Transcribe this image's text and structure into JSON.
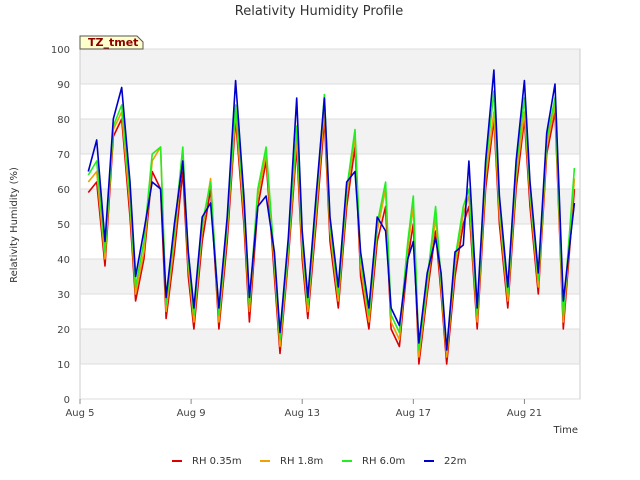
{
  "chart_data": {
    "type": "line",
    "title": "Relativity Humidity Profile",
    "badge": "TZ_tmet",
    "xlabel": "Time",
    "ylabel": "Relativity Humidity (%)",
    "xlim": [
      5,
      23
    ],
    "ylim": [
      0,
      100
    ],
    "yticks": [
      0,
      10,
      20,
      30,
      40,
      50,
      60,
      70,
      80,
      90,
      100
    ],
    "xticks": [
      {
        "day": 5,
        "label": "Aug 5"
      },
      {
        "day": 9,
        "label": "Aug 9"
      },
      {
        "day": 13,
        "label": "Aug 13"
      },
      {
        "day": 17,
        "label": "Aug 17"
      },
      {
        "day": 21,
        "label": "Aug 21"
      }
    ],
    "grid": true,
    "legend_position": "bottom",
    "x_unit": "day of August",
    "series": [
      {
        "name": "RH 0.35m",
        "color": "#dd0000",
        "points": [
          [
            5.3,
            59
          ],
          [
            5.6,
            62
          ],
          [
            5.9,
            38
          ],
          [
            6.2,
            75
          ],
          [
            6.5,
            80
          ],
          [
            6.8,
            52
          ],
          [
            7.0,
            28
          ],
          [
            7.3,
            40
          ],
          [
            7.6,
            65
          ],
          [
            7.9,
            60
          ],
          [
            8.1,
            23
          ],
          [
            8.4,
            42
          ],
          [
            8.7,
            65
          ],
          [
            8.9,
            35
          ],
          [
            9.1,
            20
          ],
          [
            9.4,
            45
          ],
          [
            9.7,
            60
          ],
          [
            10.0,
            20
          ],
          [
            10.3,
            45
          ],
          [
            10.6,
            80
          ],
          [
            10.9,
            50
          ],
          [
            11.1,
            22
          ],
          [
            11.4,
            55
          ],
          [
            11.7,
            68
          ],
          [
            12.0,
            35
          ],
          [
            12.2,
            13
          ],
          [
            12.5,
            40
          ],
          [
            12.8,
            72
          ],
          [
            13.0,
            40
          ],
          [
            13.2,
            23
          ],
          [
            13.5,
            50
          ],
          [
            13.8,
            80
          ],
          [
            14.0,
            45
          ],
          [
            14.3,
            26
          ],
          [
            14.6,
            55
          ],
          [
            14.9,
            72
          ],
          [
            15.1,
            35
          ],
          [
            15.4,
            20
          ],
          [
            15.7,
            45
          ],
          [
            16.0,
            55
          ],
          [
            16.2,
            20
          ],
          [
            16.5,
            15
          ],
          [
            16.8,
            40
          ],
          [
            17.0,
            50
          ],
          [
            17.2,
            10
          ],
          [
            17.5,
            30
          ],
          [
            17.8,
            48
          ],
          [
            18.0,
            30
          ],
          [
            18.2,
            10
          ],
          [
            18.5,
            35
          ],
          [
            18.8,
            50
          ],
          [
            19.0,
            55
          ],
          [
            19.3,
            20
          ],
          [
            19.6,
            60
          ],
          [
            19.9,
            80
          ],
          [
            20.1,
            50
          ],
          [
            20.4,
            26
          ],
          [
            20.7,
            60
          ],
          [
            21.0,
            80
          ],
          [
            21.2,
            55
          ],
          [
            21.5,
            30
          ],
          [
            21.8,
            70
          ],
          [
            22.1,
            82
          ],
          [
            22.4,
            20
          ],
          [
            22.8,
            60
          ]
        ]
      },
      {
        "name": "RH 1.8m",
        "color": "#f0a000",
        "points": [
          [
            5.3,
            62
          ],
          [
            5.6,
            65
          ],
          [
            5.9,
            40
          ],
          [
            6.2,
            77
          ],
          [
            6.5,
            82
          ],
          [
            6.8,
            55
          ],
          [
            7.0,
            30
          ],
          [
            7.3,
            42
          ],
          [
            7.6,
            68
          ],
          [
            7.9,
            72
          ],
          [
            8.1,
            25
          ],
          [
            8.4,
            45
          ],
          [
            8.7,
            70
          ],
          [
            8.9,
            38
          ],
          [
            9.1,
            22
          ],
          [
            9.4,
            48
          ],
          [
            9.7,
            63
          ],
          [
            10.0,
            22
          ],
          [
            10.3,
            48
          ],
          [
            10.6,
            82
          ],
          [
            10.9,
            53
          ],
          [
            11.1,
            25
          ],
          [
            11.4,
            58
          ],
          [
            11.7,
            70
          ],
          [
            12.0,
            38
          ],
          [
            12.2,
            15
          ],
          [
            12.5,
            42
          ],
          [
            12.8,
            75
          ],
          [
            13.0,
            43
          ],
          [
            13.2,
            25
          ],
          [
            13.5,
            53
          ],
          [
            13.8,
            83
          ],
          [
            14.0,
            48
          ],
          [
            14.3,
            28
          ],
          [
            14.6,
            58
          ],
          [
            14.9,
            75
          ],
          [
            15.1,
            38
          ],
          [
            15.4,
            22
          ],
          [
            15.7,
            48
          ],
          [
            16.0,
            60
          ],
          [
            16.2,
            22
          ],
          [
            16.5,
            17
          ],
          [
            16.8,
            43
          ],
          [
            17.0,
            55
          ],
          [
            17.2,
            12
          ],
          [
            17.5,
            32
          ],
          [
            17.8,
            52
          ],
          [
            18.0,
            32
          ],
          [
            18.2,
            12
          ],
          [
            18.5,
            38
          ],
          [
            18.8,
            53
          ],
          [
            19.0,
            58
          ],
          [
            19.3,
            22
          ],
          [
            19.6,
            63
          ],
          [
            19.9,
            82
          ],
          [
            20.1,
            53
          ],
          [
            20.4,
            28
          ],
          [
            20.7,
            63
          ],
          [
            21.0,
            82
          ],
          [
            21.2,
            58
          ],
          [
            21.5,
            32
          ],
          [
            21.8,
            72
          ],
          [
            22.1,
            84
          ],
          [
            22.4,
            22
          ],
          [
            22.8,
            63
          ]
        ]
      },
      {
        "name": "RH 6.0m",
        "color": "#22ee22",
        "points": [
          [
            5.3,
            64
          ],
          [
            5.6,
            68
          ],
          [
            5.9,
            42
          ],
          [
            6.2,
            78
          ],
          [
            6.5,
            84
          ],
          [
            6.8,
            58
          ],
          [
            7.0,
            32
          ],
          [
            7.3,
            45
          ],
          [
            7.6,
            70
          ],
          [
            7.9,
            72
          ],
          [
            8.1,
            27
          ],
          [
            8.4,
            48
          ],
          [
            8.7,
            72
          ],
          [
            8.9,
            40
          ],
          [
            9.1,
            24
          ],
          [
            9.4,
            50
          ],
          [
            9.7,
            62
          ],
          [
            10.0,
            24
          ],
          [
            10.3,
            50
          ],
          [
            10.6,
            84
          ],
          [
            10.9,
            56
          ],
          [
            11.1,
            27
          ],
          [
            11.4,
            60
          ],
          [
            11.7,
            72
          ],
          [
            12.0,
            40
          ],
          [
            12.2,
            17
          ],
          [
            12.5,
            44
          ],
          [
            12.8,
            78
          ],
          [
            13.0,
            46
          ],
          [
            13.2,
            27
          ],
          [
            13.5,
            56
          ],
          [
            13.8,
            87
          ],
          [
            14.0,
            50
          ],
          [
            14.3,
            30
          ],
          [
            14.6,
            60
          ],
          [
            14.9,
            77
          ],
          [
            15.1,
            40
          ],
          [
            15.4,
            24
          ],
          [
            15.7,
            50
          ],
          [
            16.0,
            62
          ],
          [
            16.2,
            24
          ],
          [
            16.5,
            19
          ],
          [
            16.8,
            45
          ],
          [
            17.0,
            58
          ],
          [
            17.2,
            14
          ],
          [
            17.5,
            34
          ],
          [
            17.8,
            55
          ],
          [
            18.0,
            34
          ],
          [
            18.2,
            14
          ],
          [
            18.5,
            40
          ],
          [
            18.8,
            55
          ],
          [
            19.0,
            60
          ],
          [
            19.3,
            24
          ],
          [
            19.6,
            66
          ],
          [
            19.9,
            88
          ],
          [
            20.1,
            56
          ],
          [
            20.4,
            30
          ],
          [
            20.7,
            66
          ],
          [
            21.0,
            86
          ],
          [
            21.2,
            60
          ],
          [
            21.5,
            34
          ],
          [
            21.8,
            74
          ],
          [
            22.1,
            86
          ],
          [
            22.4,
            24
          ],
          [
            22.8,
            66
          ]
        ]
      },
      {
        "name": "22m",
        "color": "#0000cc",
        "points": [
          [
            5.3,
            65
          ],
          [
            5.6,
            74
          ],
          [
            5.9,
            45
          ],
          [
            6.2,
            80
          ],
          [
            6.5,
            89
          ],
          [
            6.8,
            62
          ],
          [
            7.0,
            35
          ],
          [
            7.3,
            48
          ],
          [
            7.6,
            62
          ],
          [
            7.9,
            60
          ],
          [
            8.1,
            29
          ],
          [
            8.4,
            50
          ],
          [
            8.7,
            68
          ],
          [
            8.9,
            42
          ],
          [
            9.1,
            26
          ],
          [
            9.4,
            52
          ],
          [
            9.7,
            56
          ],
          [
            10.0,
            26
          ],
          [
            10.3,
            52
          ],
          [
            10.6,
            91
          ],
          [
            10.9,
            58
          ],
          [
            11.1,
            29
          ],
          [
            11.4,
            55
          ],
          [
            11.7,
            58
          ],
          [
            12.0,
            42
          ],
          [
            12.2,
            19
          ],
          [
            12.5,
            46
          ],
          [
            12.8,
            86
          ],
          [
            13.0,
            48
          ],
          [
            13.2,
            29
          ],
          [
            13.5,
            58
          ],
          [
            13.8,
            86
          ],
          [
            14.0,
            52
          ],
          [
            14.3,
            32
          ],
          [
            14.6,
            62
          ],
          [
            14.9,
            65
          ],
          [
            15.1,
            42
          ],
          [
            15.4,
            26
          ],
          [
            15.7,
            52
          ],
          [
            16.0,
            48
          ],
          [
            16.2,
            26
          ],
          [
            16.5,
            21
          ],
          [
            16.8,
            40
          ],
          [
            17.0,
            45
          ],
          [
            17.2,
            16
          ],
          [
            17.5,
            36
          ],
          [
            17.8,
            46
          ],
          [
            18.0,
            36
          ],
          [
            18.2,
            14
          ],
          [
            18.5,
            42
          ],
          [
            18.8,
            44
          ],
          [
            19.0,
            68
          ],
          [
            19.3,
            26
          ],
          [
            19.6,
            68
          ],
          [
            19.9,
            94
          ],
          [
            20.1,
            58
          ],
          [
            20.4,
            32
          ],
          [
            20.7,
            68
          ],
          [
            21.0,
            91
          ],
          [
            21.2,
            62
          ],
          [
            21.5,
            36
          ],
          [
            21.8,
            76
          ],
          [
            22.1,
            90
          ],
          [
            22.4,
            28
          ],
          [
            22.8,
            56
          ]
        ]
      }
    ]
  }
}
